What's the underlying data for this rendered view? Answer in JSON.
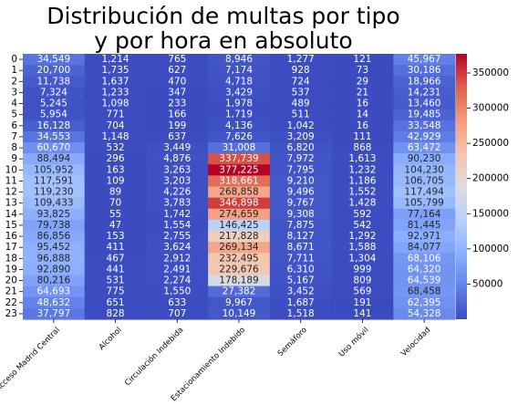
{
  "chart_data": {
    "type": "heatmap",
    "title": "Distribución de multas por tipo y por hora en absoluto",
    "title_lines": [
      "Distribución de multas por tipo",
      "y por hora en absoluto"
    ],
    "rows": [
      "0",
      "1",
      "2",
      "3",
      "4",
      "5",
      "6",
      "7",
      "8",
      "9",
      "10",
      "11",
      "12",
      "13",
      "14",
      "15",
      "16",
      "17",
      "18",
      "19",
      "20",
      "21",
      "22",
      "23"
    ],
    "columns": [
      "Acceso Madrid Central",
      "Alcohol",
      "Circulación Indebida",
      "Estacionamiento Indebido",
      "Semáforo",
      "Uso móvil",
      "Velocidad"
    ],
    "values": [
      [
        34549,
        1214,
        765,
        8946,
        1277,
        121,
        45967
      ],
      [
        20700,
        1735,
        627,
        7174,
        928,
        73,
        30186
      ],
      [
        11738,
        1637,
        470,
        4718,
        724,
        29,
        18966
      ],
      [
        7324,
        1233,
        347,
        3429,
        537,
        21,
        14231
      ],
      [
        5245,
        1098,
        233,
        1978,
        489,
        16,
        13460
      ],
      [
        5954,
        771,
        166,
        1719,
        511,
        14,
        19485
      ],
      [
        16128,
        704,
        199,
        4136,
        1042,
        16,
        33548
      ],
      [
        34553,
        1148,
        637,
        7626,
        3209,
        111,
        42929
      ],
      [
        60670,
        532,
        3449,
        31008,
        6820,
        868,
        63472
      ],
      [
        88494,
        296,
        4876,
        337739,
        7972,
        1613,
        90230
      ],
      [
        105952,
        163,
        3263,
        377225,
        7795,
        1232,
        104230
      ],
      [
        117591,
        109,
        3203,
        318661,
        9210,
        1186,
        106705
      ],
      [
        119230,
        89,
        4226,
        268858,
        9496,
        1552,
        117494
      ],
      [
        109433,
        70,
        3783,
        346898,
        9767,
        1428,
        105799
      ],
      [
        93825,
        55,
        1742,
        274659,
        9308,
        592,
        77164
      ],
      [
        79738,
        47,
        1554,
        146425,
        7875,
        542,
        81445
      ],
      [
        86856,
        153,
        2755,
        217828,
        8127,
        1292,
        92971
      ],
      [
        95452,
        411,
        3624,
        269134,
        8671,
        1588,
        84077
      ],
      [
        96888,
        467,
        2912,
        232495,
        7711,
        1304,
        68106
      ],
      [
        92890,
        441,
        2491,
        229676,
        6310,
        999,
        64320
      ],
      [
        80216,
        531,
        2274,
        178189,
        5167,
        809,
        64539
      ],
      [
        64693,
        775,
        1550,
        27382,
        3452,
        569,
        68458
      ],
      [
        48632,
        651,
        633,
        9967,
        1687,
        191,
        62395
      ],
      [
        37797,
        828,
        707,
        10149,
        1518,
        141,
        54328
      ]
    ],
    "colormap": "coolwarm",
    "color_range": [
      0,
      377225
    ],
    "colorbar_ticks": [
      50000,
      100000,
      150000,
      200000,
      250000,
      300000,
      350000
    ],
    "annotation_format": "thousands_comma"
  }
}
